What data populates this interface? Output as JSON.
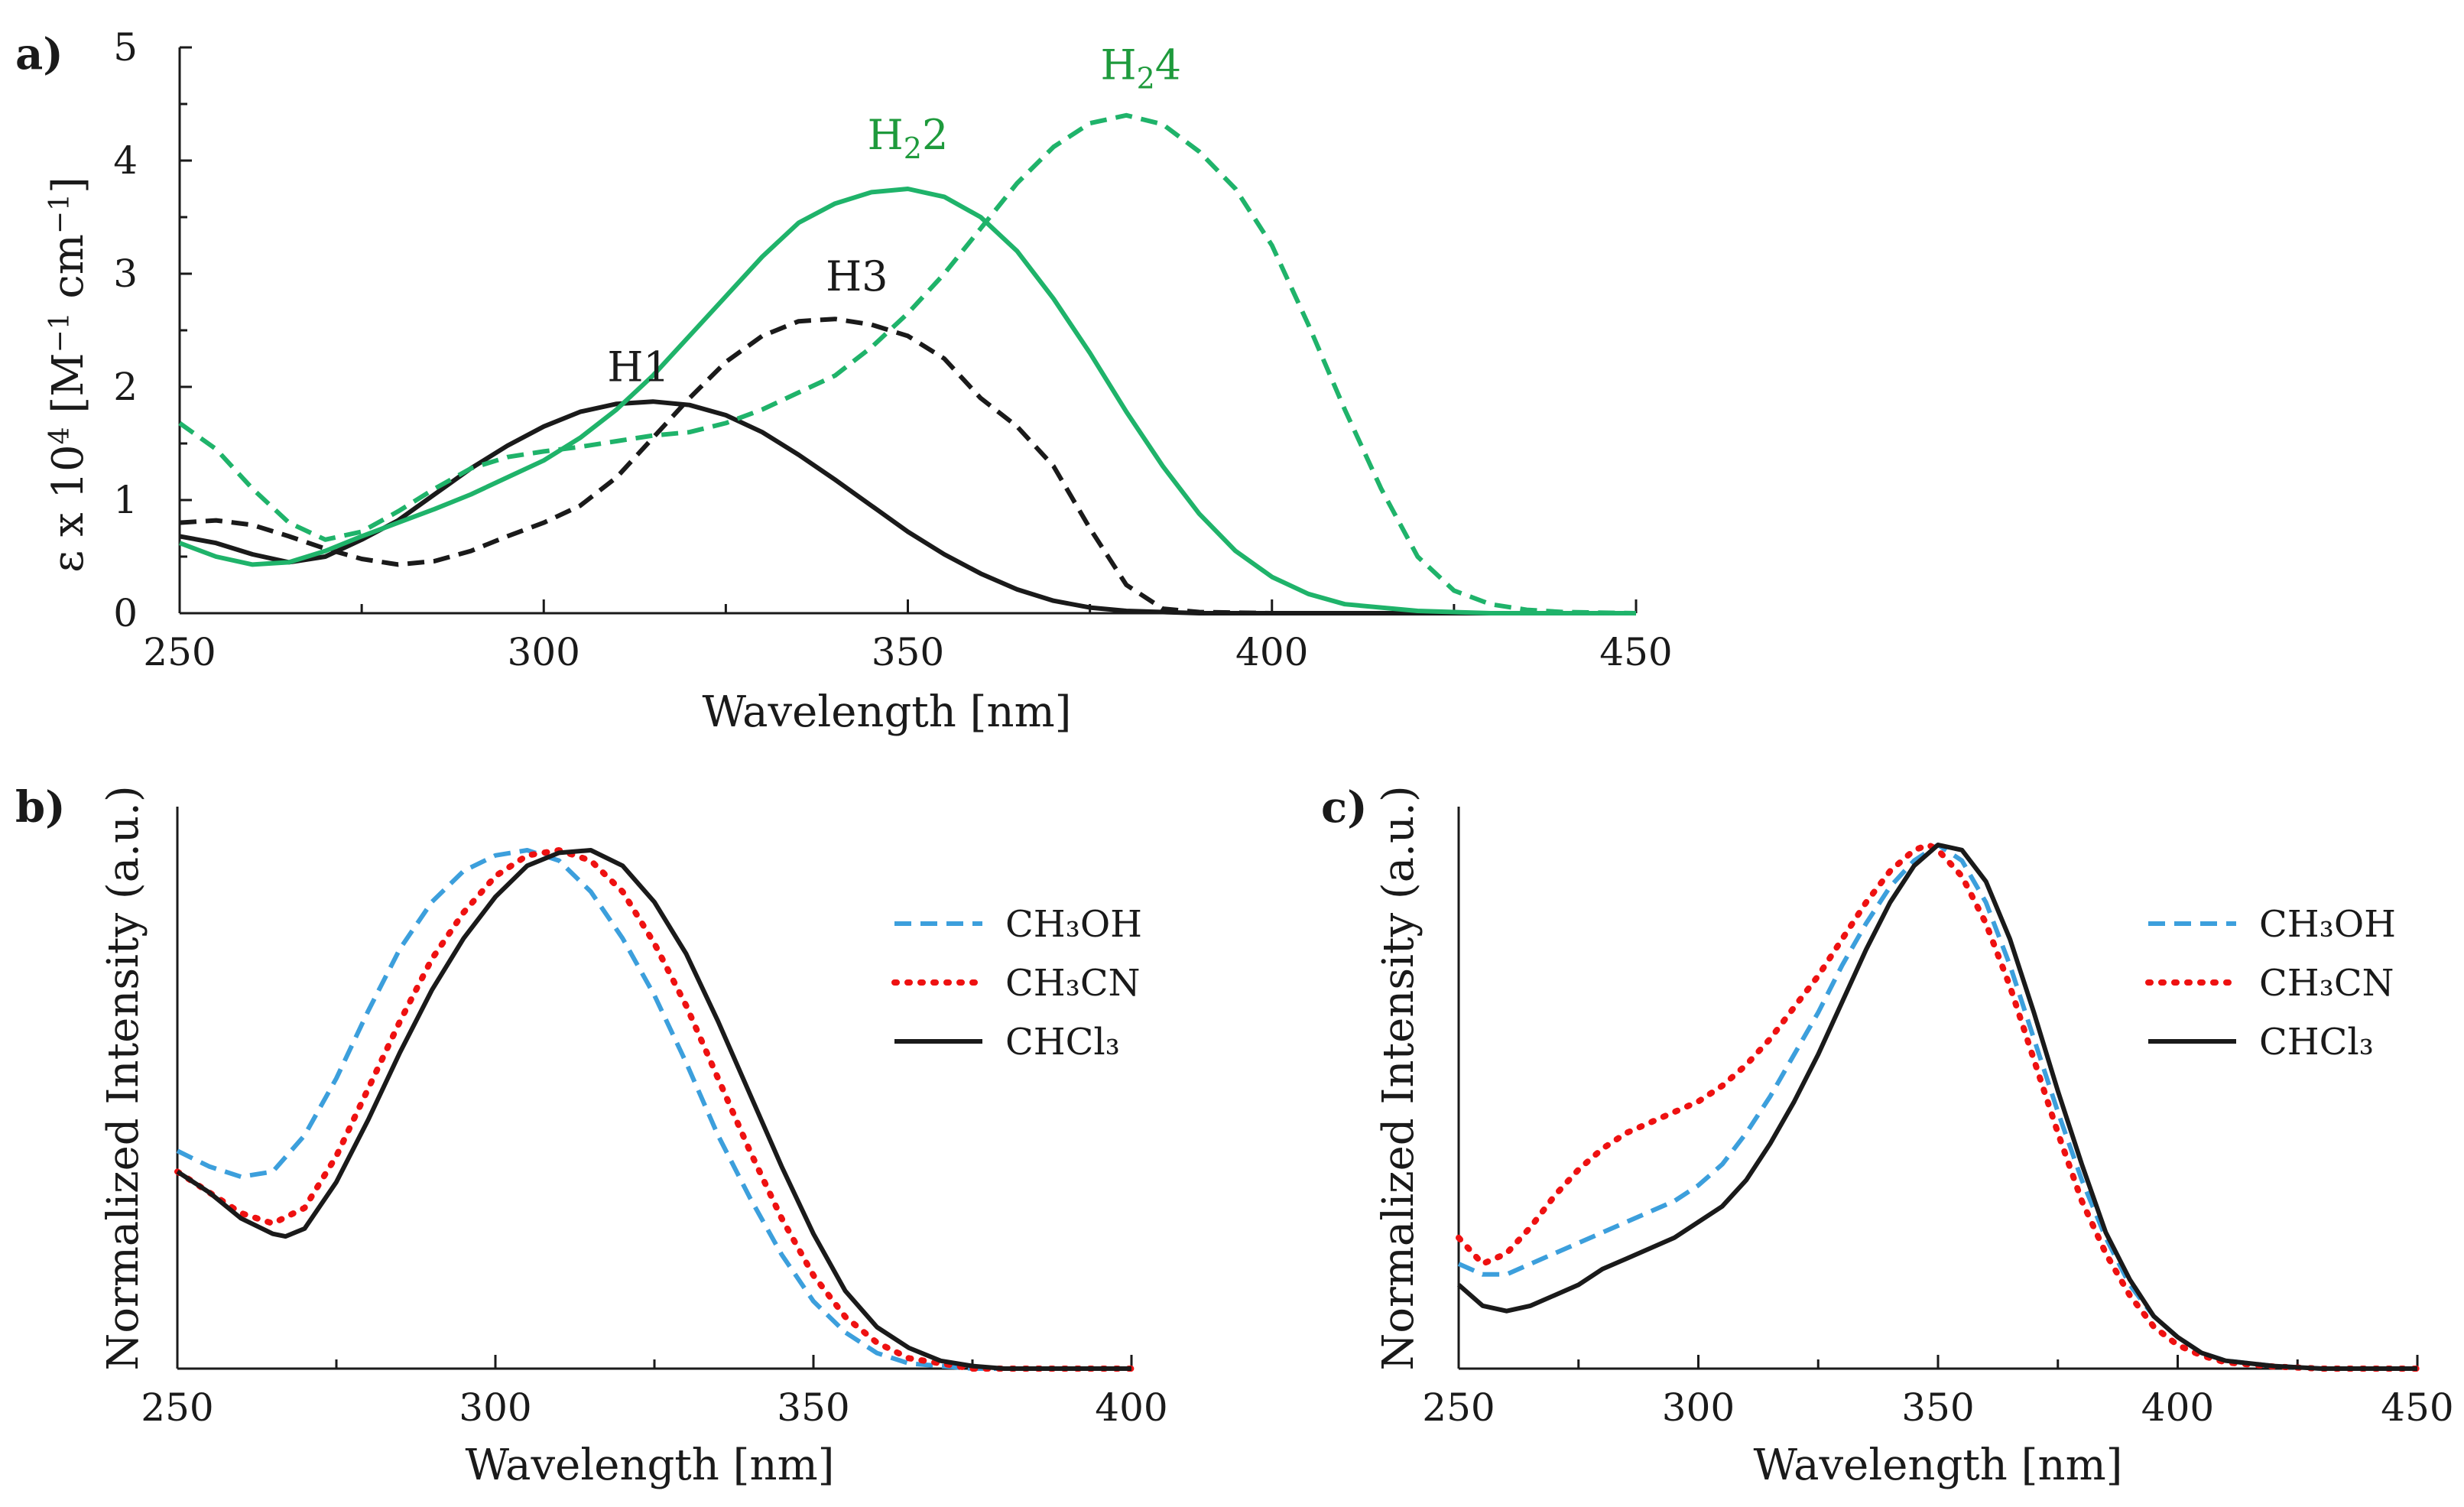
{
  "colors": {
    "black": "#1a1a1a",
    "green": "#1fb36a",
    "blue": "#3c9fdc",
    "red": "#ee1111",
    "green_text": "#1e9a3c"
  },
  "chart_data": [
    {
      "type": "line",
      "panel": "a)",
      "xlabel": "Wavelength [nm]",
      "ylabel_parts": [
        "ε x 10",
        "4",
        " [M",
        "−1",
        " cm",
        "−1",
        "]"
      ],
      "xlim": [
        250,
        450
      ],
      "ylim": [
        0,
        5
      ],
      "xticks": [
        250,
        300,
        350,
        400,
        450
      ],
      "yticks": [
        0,
        1,
        2,
        3,
        4,
        5
      ],
      "series": [
        {
          "name": "H1",
          "color": "black",
          "dash": "solid",
          "x": [
            250,
            255,
            260,
            265,
            270,
            275,
            280,
            285,
            290,
            295,
            300,
            305,
            310,
            315,
            320,
            325,
            330,
            335,
            340,
            345,
            350,
            355,
            360,
            365,
            370,
            375,
            380,
            385,
            390,
            400,
            420,
            450
          ],
          "y": [
            0.68,
            0.62,
            0.52,
            0.45,
            0.5,
            0.65,
            0.82,
            1.05,
            1.28,
            1.48,
            1.65,
            1.78,
            1.85,
            1.87,
            1.84,
            1.75,
            1.6,
            1.4,
            1.18,
            0.95,
            0.72,
            0.52,
            0.35,
            0.21,
            0.11,
            0.05,
            0.02,
            0.01,
            0,
            0,
            0,
            0
          ]
        },
        {
          "name": "H3",
          "color": "black",
          "dash": "dashed",
          "x": [
            250,
            255,
            260,
            265,
            270,
            275,
            280,
            285,
            290,
            295,
            300,
            305,
            310,
            315,
            320,
            325,
            330,
            335,
            340,
            345,
            350,
            355,
            360,
            365,
            370,
            375,
            380,
            385,
            390,
            400,
            450
          ],
          "y": [
            0.8,
            0.82,
            0.78,
            0.68,
            0.57,
            0.48,
            0.43,
            0.46,
            0.55,
            0.68,
            0.8,
            0.95,
            1.2,
            1.55,
            1.9,
            2.22,
            2.45,
            2.58,
            2.6,
            2.55,
            2.45,
            2.25,
            1.9,
            1.65,
            1.3,
            0.75,
            0.25,
            0.04,
            0.01,
            0,
            0
          ]
        },
        {
          "name": "H₂2",
          "color": "green",
          "dash": "solid",
          "x": [
            250,
            255,
            260,
            265,
            270,
            275,
            280,
            285,
            290,
            295,
            300,
            305,
            310,
            315,
            320,
            325,
            330,
            335,
            340,
            345,
            350,
            355,
            360,
            365,
            370,
            375,
            380,
            385,
            390,
            395,
            400,
            405,
            410,
            420,
            430,
            440,
            450
          ],
          "y": [
            0.62,
            0.5,
            0.43,
            0.45,
            0.55,
            0.68,
            0.8,
            0.92,
            1.05,
            1.2,
            1.35,
            1.55,
            1.8,
            2.1,
            2.45,
            2.8,
            3.15,
            3.45,
            3.62,
            3.72,
            3.75,
            3.68,
            3.5,
            3.2,
            2.78,
            2.3,
            1.78,
            1.3,
            0.88,
            0.55,
            0.32,
            0.17,
            0.08,
            0.02,
            0,
            0,
            0
          ]
        },
        {
          "name": "H₂4",
          "color": "green",
          "dash": "dashed",
          "x": [
            250,
            255,
            260,
            265,
            270,
            275,
            280,
            285,
            290,
            295,
            300,
            305,
            310,
            315,
            320,
            325,
            330,
            335,
            340,
            345,
            350,
            355,
            360,
            365,
            370,
            375,
            380,
            385,
            390,
            395,
            400,
            405,
            410,
            415,
            420,
            425,
            430,
            435,
            440,
            450
          ],
          "y": [
            1.68,
            1.45,
            1.1,
            0.8,
            0.65,
            0.72,
            0.9,
            1.1,
            1.28,
            1.38,
            1.43,
            1.47,
            1.52,
            1.57,
            1.6,
            1.68,
            1.8,
            1.95,
            2.1,
            2.35,
            2.65,
            3.0,
            3.4,
            3.8,
            4.12,
            4.33,
            4.4,
            4.32,
            4.08,
            3.75,
            3.25,
            2.55,
            1.8,
            1.1,
            0.5,
            0.2,
            0.08,
            0.03,
            0.01,
            0
          ]
        }
      ],
      "annotations": [
        {
          "text": "H1",
          "x": 313,
          "y": 2.05,
          "color": "black"
        },
        {
          "text": "H3",
          "x": 343,
          "y": 2.85,
          "color": "black"
        },
        {
          "text": "H₂2",
          "x": 350,
          "y": 4.1,
          "color": "green"
        },
        {
          "text": "H₂4",
          "x": 382,
          "y": 4.72,
          "color": "green"
        }
      ]
    },
    {
      "type": "line",
      "panel": "b)",
      "xlabel": "Wavelength [nm]",
      "ylabel": "Normalized Intensity (a.u.)",
      "xlim": [
        250,
        400
      ],
      "ylim": [
        0,
        1.0
      ],
      "xticks": [
        250,
        300,
        350,
        400
      ],
      "legend_position": "top-right",
      "series": [
        {
          "name": "CH₃OH",
          "color": "blue",
          "dash": "dashed",
          "x": [
            250,
            255,
            260,
            265,
            270,
            275,
            280,
            285,
            290,
            295,
            300,
            305,
            310,
            315,
            320,
            325,
            330,
            335,
            340,
            345,
            350,
            355,
            360,
            365,
            370,
            375,
            380,
            390,
            400
          ],
          "y": [
            0.42,
            0.39,
            0.37,
            0.38,
            0.45,
            0.56,
            0.69,
            0.81,
            0.9,
            0.96,
            0.99,
            1.0,
            0.98,
            0.92,
            0.83,
            0.72,
            0.59,
            0.45,
            0.33,
            0.22,
            0.13,
            0.07,
            0.03,
            0.01,
            0.005,
            0,
            0,
            0,
            0
          ]
        },
        {
          "name": "CH₃CN",
          "color": "red",
          "dash": "dotted",
          "x": [
            250,
            255,
            260,
            265,
            270,
            275,
            280,
            285,
            290,
            295,
            300,
            305,
            310,
            315,
            320,
            325,
            330,
            335,
            340,
            345,
            350,
            355,
            360,
            365,
            370,
            375,
            380,
            390,
            400
          ],
          "y": [
            0.38,
            0.34,
            0.3,
            0.28,
            0.31,
            0.41,
            0.54,
            0.67,
            0.79,
            0.88,
            0.95,
            0.99,
            1.0,
            0.98,
            0.92,
            0.82,
            0.7,
            0.56,
            0.42,
            0.29,
            0.18,
            0.1,
            0.05,
            0.02,
            0.01,
            0,
            0,
            0,
            0
          ]
        },
        {
          "name": "CHCl₃",
          "color": "black",
          "dash": "solid",
          "x": [
            250,
            255,
            260,
            265,
            267,
            270,
            275,
            280,
            285,
            290,
            295,
            300,
            305,
            310,
            315,
            320,
            325,
            330,
            335,
            340,
            345,
            350,
            355,
            360,
            365,
            370,
            375,
            380,
            390,
            400
          ],
          "y": [
            0.38,
            0.34,
            0.29,
            0.26,
            0.255,
            0.27,
            0.36,
            0.48,
            0.61,
            0.73,
            0.83,
            0.91,
            0.97,
            0.995,
            1.0,
            0.97,
            0.9,
            0.8,
            0.67,
            0.53,
            0.39,
            0.26,
            0.15,
            0.08,
            0.04,
            0.015,
            0.005,
            0,
            0,
            0
          ]
        }
      ]
    },
    {
      "type": "line",
      "panel": "c)",
      "xlabel": "Wavelength [nm]",
      "ylabel": "Normalized Intensity (a.u.)",
      "xlim": [
        250,
        450
      ],
      "ylim": [
        0,
        1.0
      ],
      "xticks": [
        250,
        300,
        350,
        400,
        450
      ],
      "legend_position": "top-right",
      "series": [
        {
          "name": "CH₃OH",
          "color": "blue",
          "dash": "dashed",
          "x": [
            250,
            255,
            260,
            265,
            270,
            275,
            280,
            285,
            290,
            295,
            300,
            305,
            310,
            315,
            320,
            325,
            330,
            335,
            340,
            345,
            350,
            355,
            360,
            365,
            370,
            375,
            380,
            385,
            390,
            395,
            400,
            405,
            410,
            420,
            430,
            440,
            450
          ],
          "y": [
            0.2,
            0.18,
            0.18,
            0.2,
            0.22,
            0.24,
            0.26,
            0.28,
            0.3,
            0.32,
            0.35,
            0.39,
            0.45,
            0.52,
            0.6,
            0.68,
            0.77,
            0.85,
            0.92,
            0.97,
            1.0,
            0.97,
            0.89,
            0.77,
            0.63,
            0.49,
            0.36,
            0.25,
            0.16,
            0.1,
            0.06,
            0.03,
            0.015,
            0.005,
            0,
            0,
            0
          ]
        },
        {
          "name": "CH₃CN",
          "color": "red",
          "dash": "dotted",
          "x": [
            250,
            255,
            260,
            265,
            270,
            275,
            280,
            285,
            290,
            295,
            300,
            305,
            310,
            315,
            320,
            325,
            330,
            335,
            340,
            345,
            348,
            350,
            355,
            360,
            365,
            370,
            375,
            380,
            385,
            390,
            395,
            400,
            405,
            410,
            420,
            430,
            440,
            450
          ],
          "y": [
            0.25,
            0.2,
            0.22,
            0.27,
            0.33,
            0.38,
            0.42,
            0.45,
            0.47,
            0.49,
            0.51,
            0.54,
            0.58,
            0.63,
            0.69,
            0.75,
            0.82,
            0.89,
            0.95,
            0.99,
            1.0,
            0.99,
            0.94,
            0.85,
            0.73,
            0.59,
            0.45,
            0.32,
            0.22,
            0.14,
            0.08,
            0.045,
            0.025,
            0.012,
            0.004,
            0,
            0,
            0
          ]
        },
        {
          "name": "CHCl₃",
          "color": "black",
          "dash": "solid",
          "x": [
            250,
            255,
            260,
            265,
            270,
            275,
            280,
            285,
            290,
            295,
            300,
            305,
            310,
            315,
            320,
            325,
            330,
            335,
            340,
            345,
            350,
            355,
            360,
            365,
            370,
            375,
            380,
            385,
            390,
            395,
            400,
            405,
            410,
            420,
            430,
            440,
            450
          ],
          "y": [
            0.16,
            0.12,
            0.11,
            0.12,
            0.14,
            0.16,
            0.19,
            0.21,
            0.23,
            0.25,
            0.28,
            0.31,
            0.36,
            0.43,
            0.51,
            0.6,
            0.7,
            0.8,
            0.89,
            0.96,
            1.0,
            0.99,
            0.93,
            0.82,
            0.68,
            0.53,
            0.39,
            0.26,
            0.17,
            0.1,
            0.06,
            0.03,
            0.015,
            0.005,
            0,
            0,
            0
          ]
        }
      ]
    }
  ]
}
